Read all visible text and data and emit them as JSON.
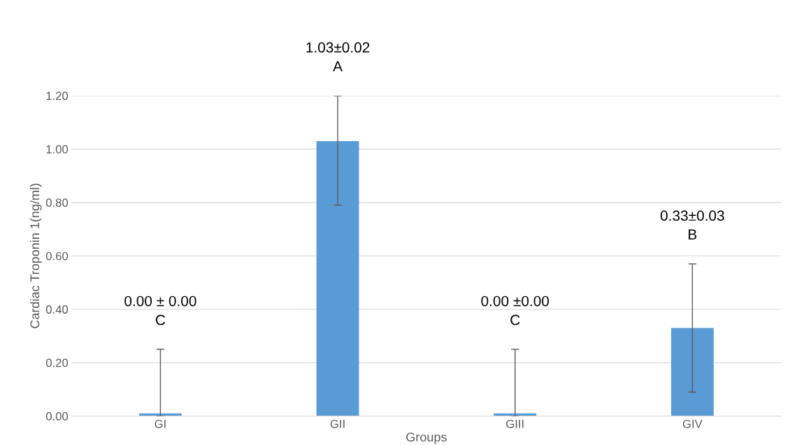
{
  "chart_data": {
    "type": "bar",
    "ylabel": "Cardiac Troponin 1(ng/ml)",
    "xlabel": "Groups",
    "categories": [
      "GI",
      "GII",
      "GIII",
      "GIV"
    ],
    "values": [
      0.01,
      1.03,
      0.01,
      0.33
    ],
    "errors": [
      [
        0.0,
        0.25
      ],
      [
        0.79,
        1.2
      ],
      [
        0.0,
        0.25
      ],
      [
        0.09,
        0.57
      ]
    ],
    "color": "#5b9bd5",
    "ylim": [
      0,
      1.2
    ],
    "yticks": [
      {
        "value": 0,
        "label": "0.00"
      },
      {
        "value": 0.2,
        "label": "0.20"
      },
      {
        "value": 0.4,
        "label": "0.40"
      },
      {
        "value": 0.6,
        "label": "0.60"
      },
      {
        "value": 0.8,
        "label": "0.80"
      },
      {
        "value": 1.0,
        "label": "1.00"
      },
      {
        "value": 1.2,
        "label": "1.20"
      }
    ],
    "grid": "y",
    "annotations": [
      "0.00 ± 0.00\nC",
      "1.03±0.02\nA",
      "0.00 ±0.00\nC",
      "0.33±0.03\nB"
    ]
  }
}
